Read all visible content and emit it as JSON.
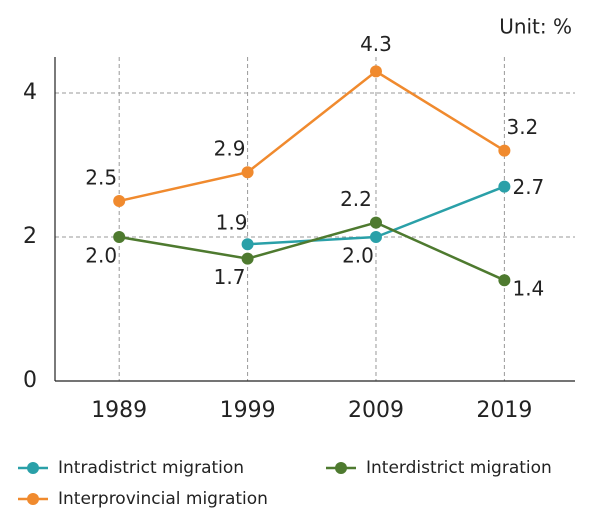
{
  "chart_data": {
    "type": "line",
    "unit": "Unit: %",
    "x": [
      1989,
      1999,
      2009,
      2019
    ],
    "xlim": [
      1984,
      2024.5
    ],
    "xticks": [
      1989,
      1999,
      2009,
      2019
    ],
    "ylim": [
      0,
      4.5
    ],
    "yticks": [
      0,
      2,
      4
    ],
    "grid": true,
    "series": [
      {
        "name": "Intradistrict migration",
        "color": "#2aa0a8",
        "values": [
          null,
          1.9,
          2.0,
          2.7
        ],
        "value_labels": [
          null,
          "1.9",
          "2.0",
          "2.7"
        ]
      },
      {
        "name": "Interdistrict migration",
        "color": "#4e7a2f",
        "values": [
          2.0,
          1.7,
          2.2,
          1.4
        ],
        "value_labels": [
          "2.0",
          "1.7",
          "2.2",
          "1.4"
        ]
      },
      {
        "name": "Interprovincial migration",
        "color": "#f08a2e",
        "values": [
          2.5,
          2.9,
          4.3,
          3.2
        ],
        "value_labels": [
          "2.5",
          "2.9",
          "4.3",
          "3.2"
        ]
      }
    ]
  }
}
